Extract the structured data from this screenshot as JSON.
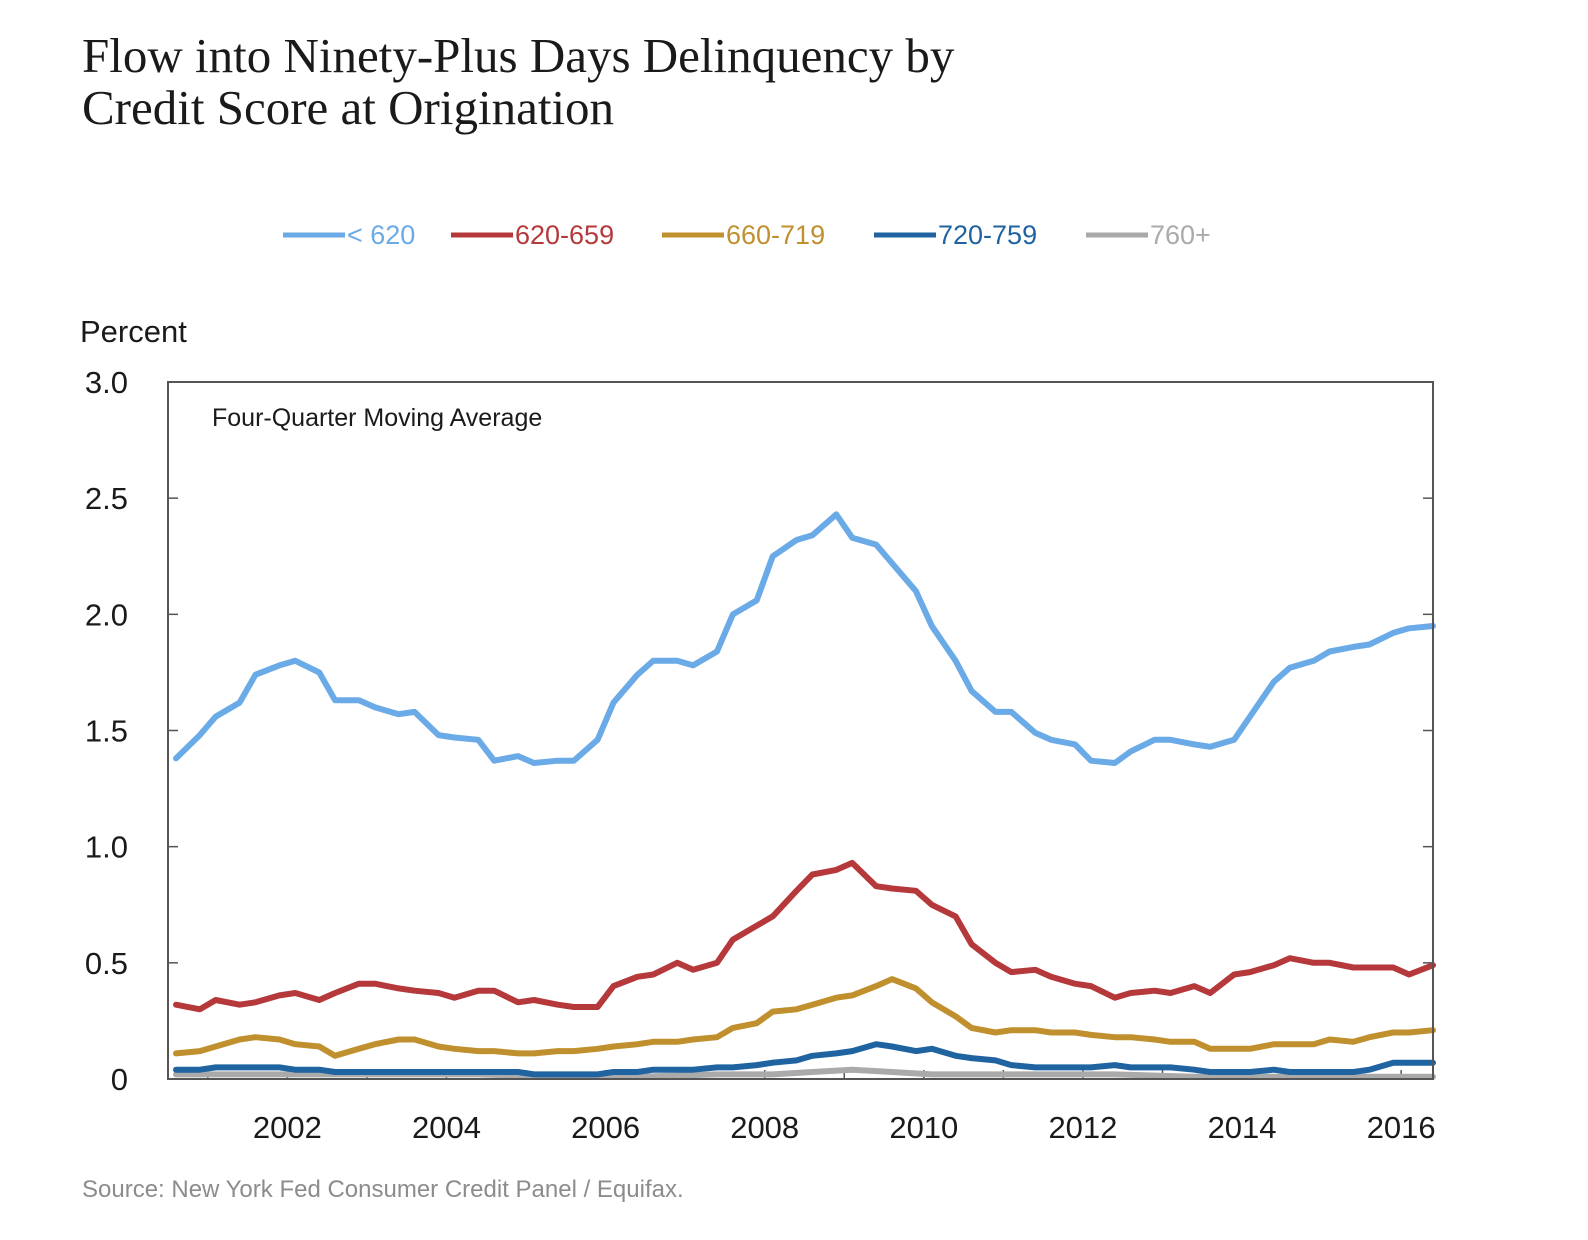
{
  "chart_data": {
    "type": "line",
    "title_line1": "Flow into Ninety-Plus Days Delinquency by",
    "title_line2": "Credit Score at Origination",
    "ylabel": "Percent",
    "annotation": "Four-Quarter Moving Average",
    "source": "Source: New York Fed Consumer Credit Panel / Equifax.",
    "xlim": [
      2000.5,
      2016.4
    ],
    "ylim": [
      0,
      3.0
    ],
    "x_ticks": [
      2002,
      2004,
      2006,
      2008,
      2010,
      2012,
      2014,
      2016
    ],
    "x_tick_labels": [
      "2002",
      "2004",
      "2006",
      "2008",
      "2010",
      "2012",
      "2014",
      "2016"
    ],
    "y_ticks": [
      0,
      0.5,
      1.0,
      1.5,
      2.0,
      2.5,
      3.0
    ],
    "y_tick_labels": [
      "0",
      "0.5",
      "1.0",
      "1.5",
      "2.0",
      "2.5",
      "3.0"
    ],
    "legend_position": "top",
    "series": [
      {
        "name": "< 620",
        "color": "#6aaae6",
        "points": [
          [
            2000.6,
            1.38
          ],
          [
            2000.9,
            1.48
          ],
          [
            2001.1,
            1.56
          ],
          [
            2001.4,
            1.62
          ],
          [
            2001.6,
            1.74
          ],
          [
            2001.9,
            1.78
          ],
          [
            2002.1,
            1.8
          ],
          [
            2002.4,
            1.75
          ],
          [
            2002.6,
            1.63
          ],
          [
            2002.9,
            1.63
          ],
          [
            2003.1,
            1.6
          ],
          [
            2003.4,
            1.57
          ],
          [
            2003.6,
            1.58
          ],
          [
            2003.9,
            1.48
          ],
          [
            2004.1,
            1.47
          ],
          [
            2004.4,
            1.46
          ],
          [
            2004.6,
            1.37
          ],
          [
            2004.9,
            1.39
          ],
          [
            2005.1,
            1.36
          ],
          [
            2005.4,
            1.37
          ],
          [
            2005.6,
            1.37
          ],
          [
            2005.9,
            1.46
          ],
          [
            2006.1,
            1.62
          ],
          [
            2006.4,
            1.74
          ],
          [
            2006.6,
            1.8
          ],
          [
            2006.9,
            1.8
          ],
          [
            2007.1,
            1.78
          ],
          [
            2007.4,
            1.84
          ],
          [
            2007.6,
            2.0
          ],
          [
            2007.9,
            2.06
          ],
          [
            2008.1,
            2.25
          ],
          [
            2008.4,
            2.32
          ],
          [
            2008.6,
            2.34
          ],
          [
            2008.9,
            2.43
          ],
          [
            2009.1,
            2.33
          ],
          [
            2009.4,
            2.3
          ],
          [
            2009.6,
            2.22
          ],
          [
            2009.9,
            2.1
          ],
          [
            2010.1,
            1.95
          ],
          [
            2010.4,
            1.8
          ],
          [
            2010.6,
            1.67
          ],
          [
            2010.9,
            1.58
          ],
          [
            2011.1,
            1.58
          ],
          [
            2011.4,
            1.49
          ],
          [
            2011.6,
            1.46
          ],
          [
            2011.9,
            1.44
          ],
          [
            2012.1,
            1.37
          ],
          [
            2012.4,
            1.36
          ],
          [
            2012.6,
            1.41
          ],
          [
            2012.9,
            1.46
          ],
          [
            2013.1,
            1.46
          ],
          [
            2013.4,
            1.44
          ],
          [
            2013.6,
            1.43
          ],
          [
            2013.9,
            1.46
          ],
          [
            2014.1,
            1.56
          ],
          [
            2014.4,
            1.71
          ],
          [
            2014.6,
            1.77
          ],
          [
            2014.9,
            1.8
          ],
          [
            2015.1,
            1.84
          ],
          [
            2015.4,
            1.86
          ],
          [
            2015.6,
            1.87
          ],
          [
            2015.9,
            1.92
          ],
          [
            2016.1,
            1.94
          ],
          [
            2016.4,
            1.95
          ]
        ]
      },
      {
        "name": "620-659",
        "color": "#b5393b",
        "points": [
          [
            2000.6,
            0.32
          ],
          [
            2000.9,
            0.3
          ],
          [
            2001.1,
            0.34
          ],
          [
            2001.4,
            0.32
          ],
          [
            2001.6,
            0.33
          ],
          [
            2001.9,
            0.36
          ],
          [
            2002.1,
            0.37
          ],
          [
            2002.4,
            0.34
          ],
          [
            2002.6,
            0.37
          ],
          [
            2002.9,
            0.41
          ],
          [
            2003.1,
            0.41
          ],
          [
            2003.4,
            0.39
          ],
          [
            2003.6,
            0.38
          ],
          [
            2003.9,
            0.37
          ],
          [
            2004.1,
            0.35
          ],
          [
            2004.4,
            0.38
          ],
          [
            2004.6,
            0.38
          ],
          [
            2004.9,
            0.33
          ],
          [
            2005.1,
            0.34
          ],
          [
            2005.4,
            0.32
          ],
          [
            2005.6,
            0.31
          ],
          [
            2005.9,
            0.31
          ],
          [
            2006.1,
            0.4
          ],
          [
            2006.4,
            0.44
          ],
          [
            2006.6,
            0.45
          ],
          [
            2006.9,
            0.5
          ],
          [
            2007.1,
            0.47
          ],
          [
            2007.4,
            0.5
          ],
          [
            2007.6,
            0.6
          ],
          [
            2007.9,
            0.66
          ],
          [
            2008.1,
            0.7
          ],
          [
            2008.4,
            0.81
          ],
          [
            2008.6,
            0.88
          ],
          [
            2008.9,
            0.9
          ],
          [
            2009.1,
            0.93
          ],
          [
            2009.4,
            0.83
          ],
          [
            2009.6,
            0.82
          ],
          [
            2009.9,
            0.81
          ],
          [
            2010.1,
            0.75
          ],
          [
            2010.4,
            0.7
          ],
          [
            2010.6,
            0.58
          ],
          [
            2010.9,
            0.5
          ],
          [
            2011.1,
            0.46
          ],
          [
            2011.4,
            0.47
          ],
          [
            2011.6,
            0.44
          ],
          [
            2011.9,
            0.41
          ],
          [
            2012.1,
            0.4
          ],
          [
            2012.4,
            0.35
          ],
          [
            2012.6,
            0.37
          ],
          [
            2012.9,
            0.38
          ],
          [
            2013.1,
            0.37
          ],
          [
            2013.4,
            0.4
          ],
          [
            2013.6,
            0.37
          ],
          [
            2013.9,
            0.45
          ],
          [
            2014.1,
            0.46
          ],
          [
            2014.4,
            0.49
          ],
          [
            2014.6,
            0.52
          ],
          [
            2014.9,
            0.5
          ],
          [
            2015.1,
            0.5
          ],
          [
            2015.4,
            0.48
          ],
          [
            2015.6,
            0.48
          ],
          [
            2015.9,
            0.48
          ],
          [
            2016.1,
            0.45
          ],
          [
            2016.4,
            0.49
          ]
        ]
      },
      {
        "name": "660-719",
        "color": "#c0902f",
        "points": [
          [
            2000.6,
            0.11
          ],
          [
            2000.9,
            0.12
          ],
          [
            2001.1,
            0.14
          ],
          [
            2001.4,
            0.17
          ],
          [
            2001.6,
            0.18
          ],
          [
            2001.9,
            0.17
          ],
          [
            2002.1,
            0.15
          ],
          [
            2002.4,
            0.14
          ],
          [
            2002.6,
            0.1
          ],
          [
            2002.9,
            0.13
          ],
          [
            2003.1,
            0.15
          ],
          [
            2003.4,
            0.17
          ],
          [
            2003.6,
            0.17
          ],
          [
            2003.9,
            0.14
          ],
          [
            2004.1,
            0.13
          ],
          [
            2004.4,
            0.12
          ],
          [
            2004.6,
            0.12
          ],
          [
            2004.9,
            0.11
          ],
          [
            2005.1,
            0.11
          ],
          [
            2005.4,
            0.12
          ],
          [
            2005.6,
            0.12
          ],
          [
            2005.9,
            0.13
          ],
          [
            2006.1,
            0.14
          ],
          [
            2006.4,
            0.15
          ],
          [
            2006.6,
            0.16
          ],
          [
            2006.9,
            0.16
          ],
          [
            2007.1,
            0.17
          ],
          [
            2007.4,
            0.18
          ],
          [
            2007.6,
            0.22
          ],
          [
            2007.9,
            0.24
          ],
          [
            2008.1,
            0.29
          ],
          [
            2008.4,
            0.3
          ],
          [
            2008.6,
            0.32
          ],
          [
            2008.9,
            0.35
          ],
          [
            2009.1,
            0.36
          ],
          [
            2009.4,
            0.4
          ],
          [
            2009.6,
            0.43
          ],
          [
            2009.9,
            0.39
          ],
          [
            2010.1,
            0.33
          ],
          [
            2010.4,
            0.27
          ],
          [
            2010.6,
            0.22
          ],
          [
            2010.9,
            0.2
          ],
          [
            2011.1,
            0.21
          ],
          [
            2011.4,
            0.21
          ],
          [
            2011.6,
            0.2
          ],
          [
            2011.9,
            0.2
          ],
          [
            2012.1,
            0.19
          ],
          [
            2012.4,
            0.18
          ],
          [
            2012.6,
            0.18
          ],
          [
            2012.9,
            0.17
          ],
          [
            2013.1,
            0.16
          ],
          [
            2013.4,
            0.16
          ],
          [
            2013.6,
            0.13
          ],
          [
            2013.9,
            0.13
          ],
          [
            2014.1,
            0.13
          ],
          [
            2014.4,
            0.15
          ],
          [
            2014.6,
            0.15
          ],
          [
            2014.9,
            0.15
          ],
          [
            2015.1,
            0.17
          ],
          [
            2015.4,
            0.16
          ],
          [
            2015.6,
            0.18
          ],
          [
            2015.9,
            0.2
          ],
          [
            2016.1,
            0.2
          ],
          [
            2016.4,
            0.21
          ]
        ]
      },
      {
        "name": "720-759",
        "color": "#1f63a0",
        "points": [
          [
            2000.6,
            0.04
          ],
          [
            2000.9,
            0.04
          ],
          [
            2001.1,
            0.05
          ],
          [
            2001.4,
            0.05
          ],
          [
            2001.6,
            0.05
          ],
          [
            2001.9,
            0.05
          ],
          [
            2002.1,
            0.04
          ],
          [
            2002.4,
            0.04
          ],
          [
            2002.6,
            0.03
          ],
          [
            2002.9,
            0.03
          ],
          [
            2003.1,
            0.03
          ],
          [
            2003.4,
            0.03
          ],
          [
            2003.6,
            0.03
          ],
          [
            2003.9,
            0.03
          ],
          [
            2004.1,
            0.03
          ],
          [
            2004.4,
            0.03
          ],
          [
            2004.6,
            0.03
          ],
          [
            2004.9,
            0.03
          ],
          [
            2005.1,
            0.02
          ],
          [
            2005.4,
            0.02
          ],
          [
            2005.6,
            0.02
          ],
          [
            2005.9,
            0.02
          ],
          [
            2006.1,
            0.03
          ],
          [
            2006.4,
            0.03
          ],
          [
            2006.6,
            0.04
          ],
          [
            2006.9,
            0.04
          ],
          [
            2007.1,
            0.04
          ],
          [
            2007.4,
            0.05
          ],
          [
            2007.6,
            0.05
          ],
          [
            2007.9,
            0.06
          ],
          [
            2008.1,
            0.07
          ],
          [
            2008.4,
            0.08
          ],
          [
            2008.6,
            0.1
          ],
          [
            2008.9,
            0.11
          ],
          [
            2009.1,
            0.12
          ],
          [
            2009.4,
            0.15
          ],
          [
            2009.6,
            0.14
          ],
          [
            2009.9,
            0.12
          ],
          [
            2010.1,
            0.13
          ],
          [
            2010.4,
            0.1
          ],
          [
            2010.6,
            0.09
          ],
          [
            2010.9,
            0.08
          ],
          [
            2011.1,
            0.06
          ],
          [
            2011.4,
            0.05
          ],
          [
            2011.6,
            0.05
          ],
          [
            2011.9,
            0.05
          ],
          [
            2012.1,
            0.05
          ],
          [
            2012.4,
            0.06
          ],
          [
            2012.6,
            0.05
          ],
          [
            2012.9,
            0.05
          ],
          [
            2013.1,
            0.05
          ],
          [
            2013.4,
            0.04
          ],
          [
            2013.6,
            0.03
          ],
          [
            2013.9,
            0.03
          ],
          [
            2014.1,
            0.03
          ],
          [
            2014.4,
            0.04
          ],
          [
            2014.6,
            0.03
          ],
          [
            2014.9,
            0.03
          ],
          [
            2015.1,
            0.03
          ],
          [
            2015.4,
            0.03
          ],
          [
            2015.6,
            0.04
          ],
          [
            2015.9,
            0.07
          ],
          [
            2016.1,
            0.07
          ],
          [
            2016.4,
            0.07
          ]
        ]
      },
      {
        "name": "760+",
        "color": "#aaaaaa",
        "points": [
          [
            2000.6,
            0.02
          ],
          [
            2001.4,
            0.02
          ],
          [
            2002.4,
            0.02
          ],
          [
            2003.4,
            0.02
          ],
          [
            2004.4,
            0.02
          ],
          [
            2005.4,
            0.01
          ],
          [
            2006.4,
            0.01
          ],
          [
            2007.4,
            0.02
          ],
          [
            2008.1,
            0.02
          ],
          [
            2008.6,
            0.03
          ],
          [
            2009.1,
            0.04
          ],
          [
            2009.6,
            0.03
          ],
          [
            2010.1,
            0.02
          ],
          [
            2010.6,
            0.02
          ],
          [
            2011.4,
            0.02
          ],
          [
            2012.4,
            0.02
          ],
          [
            2013.4,
            0.01
          ],
          [
            2014.4,
            0.01
          ],
          [
            2015.4,
            0.01
          ],
          [
            2016.4,
            0.01
          ]
        ]
      }
    ]
  }
}
